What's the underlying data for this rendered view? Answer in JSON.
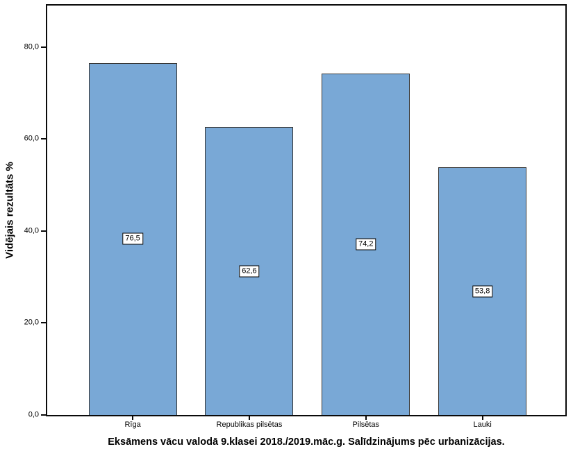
{
  "chart_data": {
    "type": "bar",
    "title": "Eksāmens vācu valodā 9.klasei 2018./2019.māc.g. Salīdzinājums pēc urbanizācijas.",
    "xlabel": "",
    "ylabel": "Vidējais rezultāts %",
    "categories": [
      "Rīga",
      "Republikas pilsētas",
      "Pilsētas",
      "Lauki"
    ],
    "values": [
      76.5,
      62.6,
      74.2,
      53.8
    ],
    "value_labels": [
      "76,5",
      "62,6",
      "74,2",
      "53,8"
    ],
    "yticks": [
      {
        "value": 0,
        "label": "0,0"
      },
      {
        "value": 20,
        "label": "20,0"
      },
      {
        "value": 40,
        "label": "40,0"
      },
      {
        "value": 60,
        "label": "60,0"
      },
      {
        "value": 80,
        "label": "80,0"
      }
    ],
    "ylim": [
      0,
      89
    ],
    "grid": false,
    "legend": false,
    "bar_fill_color": "#79A8D6",
    "bar_border_color": "#373737",
    "axis_color": "#0a0a0a",
    "value_label_bg": "#ffffff"
  }
}
